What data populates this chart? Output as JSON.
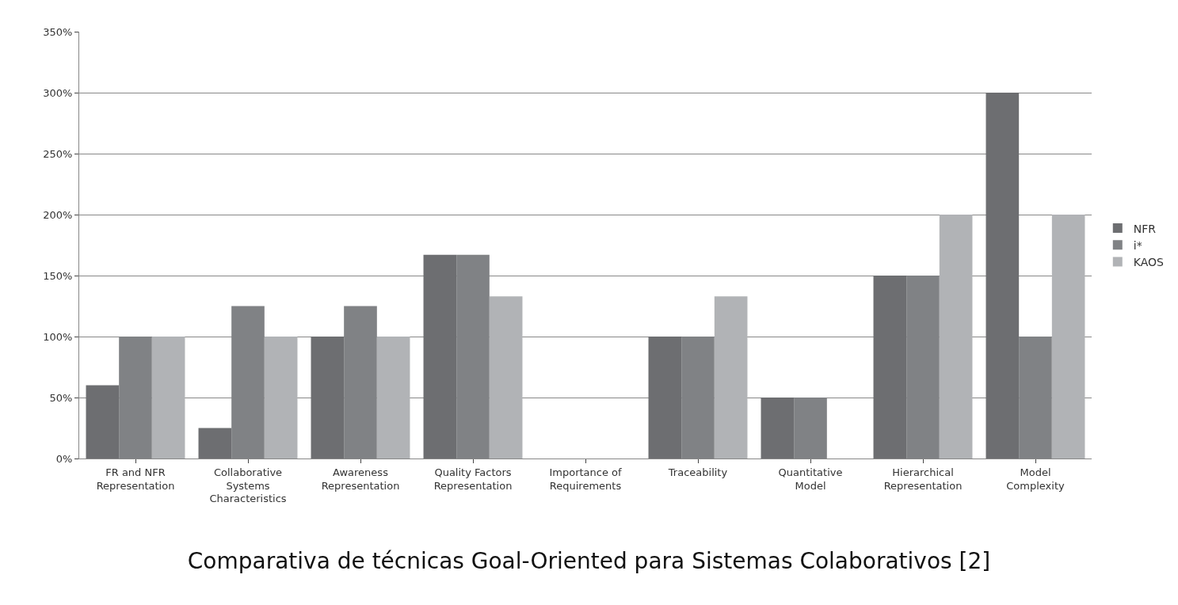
{
  "chart_data": {
    "type": "bar",
    "title": "Comparativa de técnicas Goal-Oriented para Sistemas Colaborativos [2]",
    "categories": [
      "FR and NFR\nRepresentation",
      "Collaborative\nSystems\nCharacteristics",
      "Awareness\nRepresentation",
      "Quality Factors\nRepresentation",
      "Importance of\nRequirements",
      "Traceability",
      "Quantitative\nModel",
      "Hierarchical\nRepresentation",
      "Model\nComplexity"
    ],
    "series": [
      {
        "name": "NFR",
        "color": "#6d6e71",
        "values": [
          60,
          25,
          100,
          167,
          0,
          100,
          50,
          150,
          300
        ]
      },
      {
        "name": "i*",
        "color": "#808285",
        "values": [
          100,
          125,
          125,
          167,
          0,
          100,
          50,
          150,
          100
        ]
      },
      {
        "name": "KAOS",
        "color": "#b1b3b6",
        "values": [
          100,
          100,
          100,
          133,
          0,
          133,
          0,
          200,
          200
        ]
      }
    ],
    "ylim": [
      0,
      350
    ],
    "yticks": [
      {
        "value": 0,
        "label": "0%"
      },
      {
        "value": 50,
        "label": "50%"
      },
      {
        "value": 100,
        "label": "100%"
      },
      {
        "value": 150,
        "label": "150%"
      },
      {
        "value": 200,
        "label": "200%"
      },
      {
        "value": 250,
        "label": "250%"
      },
      {
        "value": 300,
        "label": "300%"
      },
      {
        "value": 350,
        "label": "350%"
      }
    ],
    "grid": "y",
    "legend": "right"
  }
}
